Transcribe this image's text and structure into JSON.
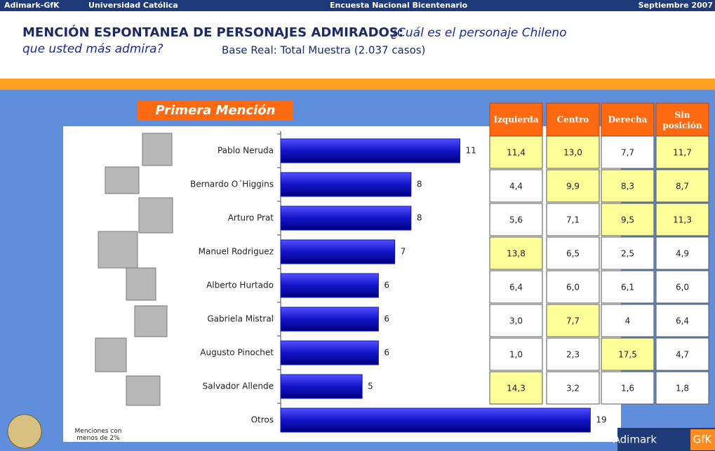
{
  "header": {
    "brand": "Adimark-GfK",
    "university": "Universidad Católica",
    "survey": "Encuesta Nacional Bicentenario",
    "date": "Septiembre 2007"
  },
  "title": "MENCIÓN ESPONTANEA DE PERSONAJES ADMIRADOS:",
  "question": [
    "¿Cuál es el personaje Chileno",
    "que usted más admira?"
  ],
  "base": "Base Real: Total Muestra (2.037 casos)",
  "chart_data": {
    "type": "bar",
    "orientation": "horizontal",
    "title": "Primera Mención",
    "categories": [
      "Pablo Neruda",
      "Bernardo O´Higgins",
      "Arturo Prat",
      "Manuel Rodriguez",
      "Alberto Hurtado",
      "Gabriela Mistral",
      "Augusto Pinochet",
      "Salvador Allende",
      "Otros"
    ],
    "values": [
      11,
      8,
      8,
      7,
      6,
      6,
      6,
      5,
      19
    ],
    "color": "#1414c8",
    "xlim": [
      0,
      22
    ],
    "note": "Menciones con menos de 2%"
  },
  "table": {
    "columns": [
      "Izquierda",
      "Centro",
      "Derecha",
      "Sin posición"
    ],
    "rows": [
      [
        "11,4",
        "13,0",
        "7,7",
        "11,7"
      ],
      [
        "4,4",
        "9,9",
        "8,3",
        "8,7"
      ],
      [
        "5,6",
        "7,1",
        "9,5",
        "11,3"
      ],
      [
        "13,8",
        "6,5",
        "2,5",
        "4,9"
      ],
      [
        "6,4",
        "6,0",
        "6,1",
        "6,0"
      ],
      [
        "3,0",
        "7,7",
        "4",
        "6,4"
      ],
      [
        "1,0",
        "2,3",
        "17,5",
        "4,7"
      ],
      [
        "14,3",
        "3,2",
        "1,6",
        "1,8"
      ]
    ],
    "highlight": [
      [
        0,
        1,
        3
      ],
      [
        1,
        2,
        3
      ],
      [
        2,
        3
      ],
      [
        0
      ],
      [],
      [
        1
      ],
      [
        2
      ],
      [
        0
      ]
    ],
    "highlight_color": "#ffff99",
    "header_color": "#ff6a10"
  },
  "footer": {
    "brand": "Adimark",
    "brand2": "GfK"
  }
}
